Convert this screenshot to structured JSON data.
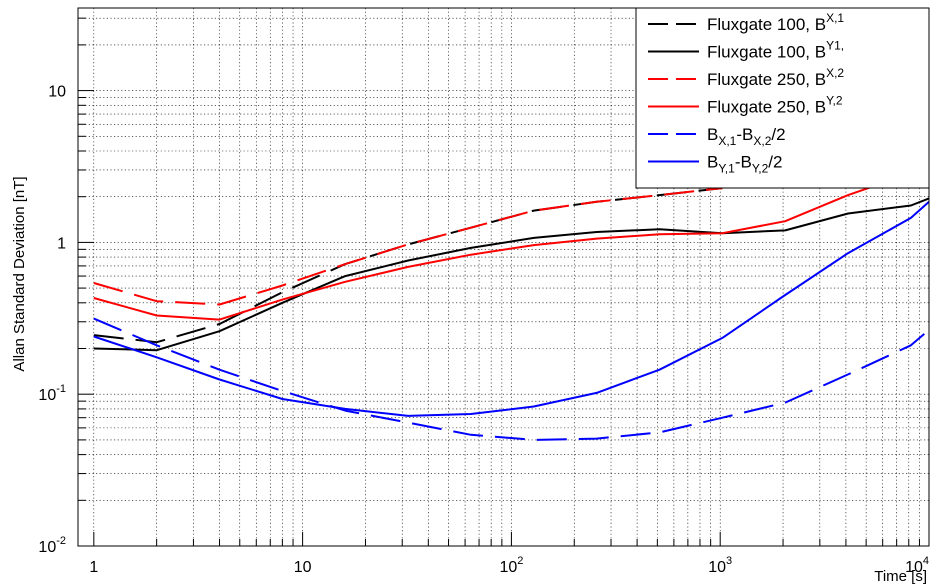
{
  "chart_data": {
    "type": "line",
    "xlabel": "Time [s]",
    "ylabel": "Allan Standard Deviation [nT]",
    "x_scale": "log",
    "y_scale": "log",
    "xlim": [
      0.84,
      10000
    ],
    "ylim": [
      0.01,
      35
    ],
    "grid": true,
    "legend_position": "top-right",
    "x_ticks": [
      {
        "base": "1",
        "exp": ""
      },
      {
        "base": "10",
        "exp": ""
      },
      {
        "base": "10",
        "exp": "2"
      },
      {
        "base": "10",
        "exp": "3"
      },
      {
        "base": "10",
        "exp": "4"
      }
    ],
    "y_ticks": [
      {
        "base": "10",
        "exp": "-2"
      },
      {
        "base": "10",
        "exp": "-1"
      },
      {
        "base": "1",
        "exp": ""
      },
      {
        "base": "10",
        "exp": ""
      }
    ],
    "series": [
      {
        "name": "Fluxgate 100, B",
        "sub": "X,1",
        "color": "#000000",
        "dash": "dashed",
        "x": [
          1,
          2,
          4,
          8,
          16,
          32,
          64,
          128,
          256,
          512,
          1024
        ],
        "y": [
          0.245,
          0.22,
          0.29,
          0.47,
          0.72,
          0.97,
          1.25,
          1.62,
          1.85,
          2.05,
          2.28
        ]
      },
      {
        "name": "Fluxgate 100, B",
        "sub": "Y1,",
        "color": "#000000",
        "dash": "solid",
        "x": [
          1,
          2,
          4,
          8,
          16,
          32,
          64,
          128,
          256,
          512,
          1024,
          2048,
          4096,
          8192,
          10000
        ],
        "y": [
          0.2,
          0.195,
          0.26,
          0.4,
          0.6,
          0.76,
          0.92,
          1.07,
          1.17,
          1.22,
          1.15,
          1.2,
          1.55,
          1.75,
          1.95
        ]
      },
      {
        "name": "Fluxgate 250, B",
        "sub": "X,2",
        "color": "#ff0000",
        "dash": "dashed",
        "x": [
          1,
          2,
          4,
          8,
          16,
          32,
          64,
          128,
          256,
          512,
          1024
        ],
        "y": [
          0.54,
          0.41,
          0.39,
          0.52,
          0.72,
          0.97,
          1.25,
          1.62,
          1.85,
          2.05,
          2.28
        ]
      },
      {
        "name": "Fluxgate 250, B",
        "sub": "Y,2",
        "color": "#ff0000",
        "dash": "solid",
        "x": [
          1,
          2,
          4,
          8,
          16,
          32,
          64,
          128,
          256,
          512,
          1024,
          2048,
          4096,
          8192
        ],
        "y": [
          0.43,
          0.33,
          0.31,
          0.42,
          0.55,
          0.69,
          0.83,
          0.96,
          1.06,
          1.13,
          1.15,
          1.38,
          2.05,
          2.85
        ]
      },
      {
        "name": "B",
        "sub": "X,1",
        "name2": "-B",
        "sub2": "X,2",
        "name3": "/2",
        "color": "#0000ff",
        "dash": "dashed",
        "x": [
          1,
          2,
          4,
          8,
          16,
          32,
          64,
          128,
          256,
          512,
          1024,
          2048,
          4096,
          8192,
          10000
        ],
        "y": [
          0.315,
          0.21,
          0.145,
          0.105,
          0.078,
          0.065,
          0.054,
          0.05,
          0.051,
          0.056,
          0.07,
          0.088,
          0.135,
          0.21,
          0.265
        ]
      },
      {
        "name": "B",
        "sub": "Y,1",
        "name2": "-B",
        "sub2": "Y,2",
        "name3": "/2",
        "color": "#0000ff",
        "dash": "solid",
        "x": [
          1,
          2,
          4,
          8,
          16,
          32,
          64,
          128,
          256,
          512,
          1024,
          2048,
          4096,
          8192,
          10000
        ],
        "y": [
          0.24,
          0.175,
          0.125,
          0.093,
          0.08,
          0.072,
          0.074,
          0.083,
          0.102,
          0.145,
          0.235,
          0.45,
          0.85,
          1.45,
          1.85
        ]
      }
    ]
  }
}
